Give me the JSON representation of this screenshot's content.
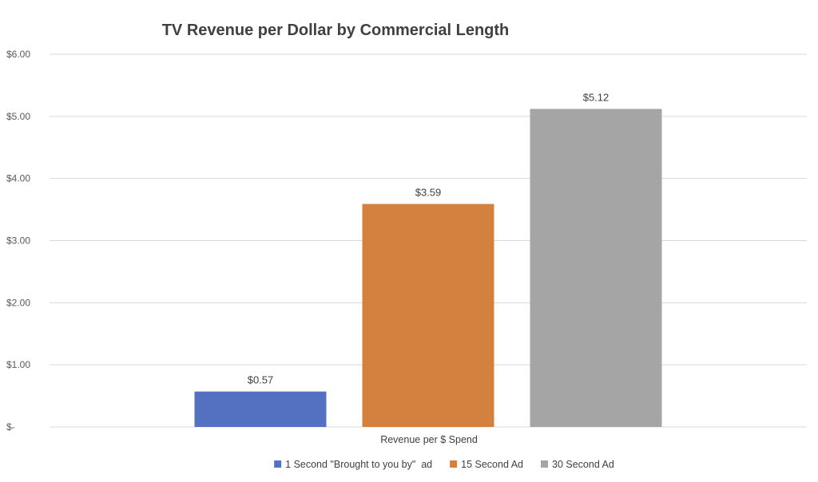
{
  "chart_data": {
    "type": "bar",
    "title": "TV Revenue per Dollar by Commercial Length",
    "categories": [
      "Revenue per $ Spend"
    ],
    "series": [
      {
        "name": "1 Second \"Brought to you by\"  ad",
        "values": [
          0.57
        ],
        "label": "$0.57",
        "color": "#5470c0"
      },
      {
        "name": "15 Second Ad",
        "values": [
          3.59
        ],
        "label": "$3.59",
        "color": "#d4813f"
      },
      {
        "name": "30 Second Ad",
        "values": [
          5.12
        ],
        "label": "$5.12",
        "color": "#a5a5a5"
      }
    ],
    "yticks": [
      {
        "value": 0,
        "label": "$-"
      },
      {
        "value": 1,
        "label": "$1.00"
      },
      {
        "value": 2,
        "label": "$2.00"
      },
      {
        "value": 3,
        "label": "$3.00"
      },
      {
        "value": 4,
        "label": "$4.00"
      },
      {
        "value": 5,
        "label": "$5.00"
      },
      {
        "value": 6,
        "label": "$6.00"
      }
    ],
    "ylim": [
      0,
      6
    ],
    "grid": true,
    "legend": "bottom"
  }
}
